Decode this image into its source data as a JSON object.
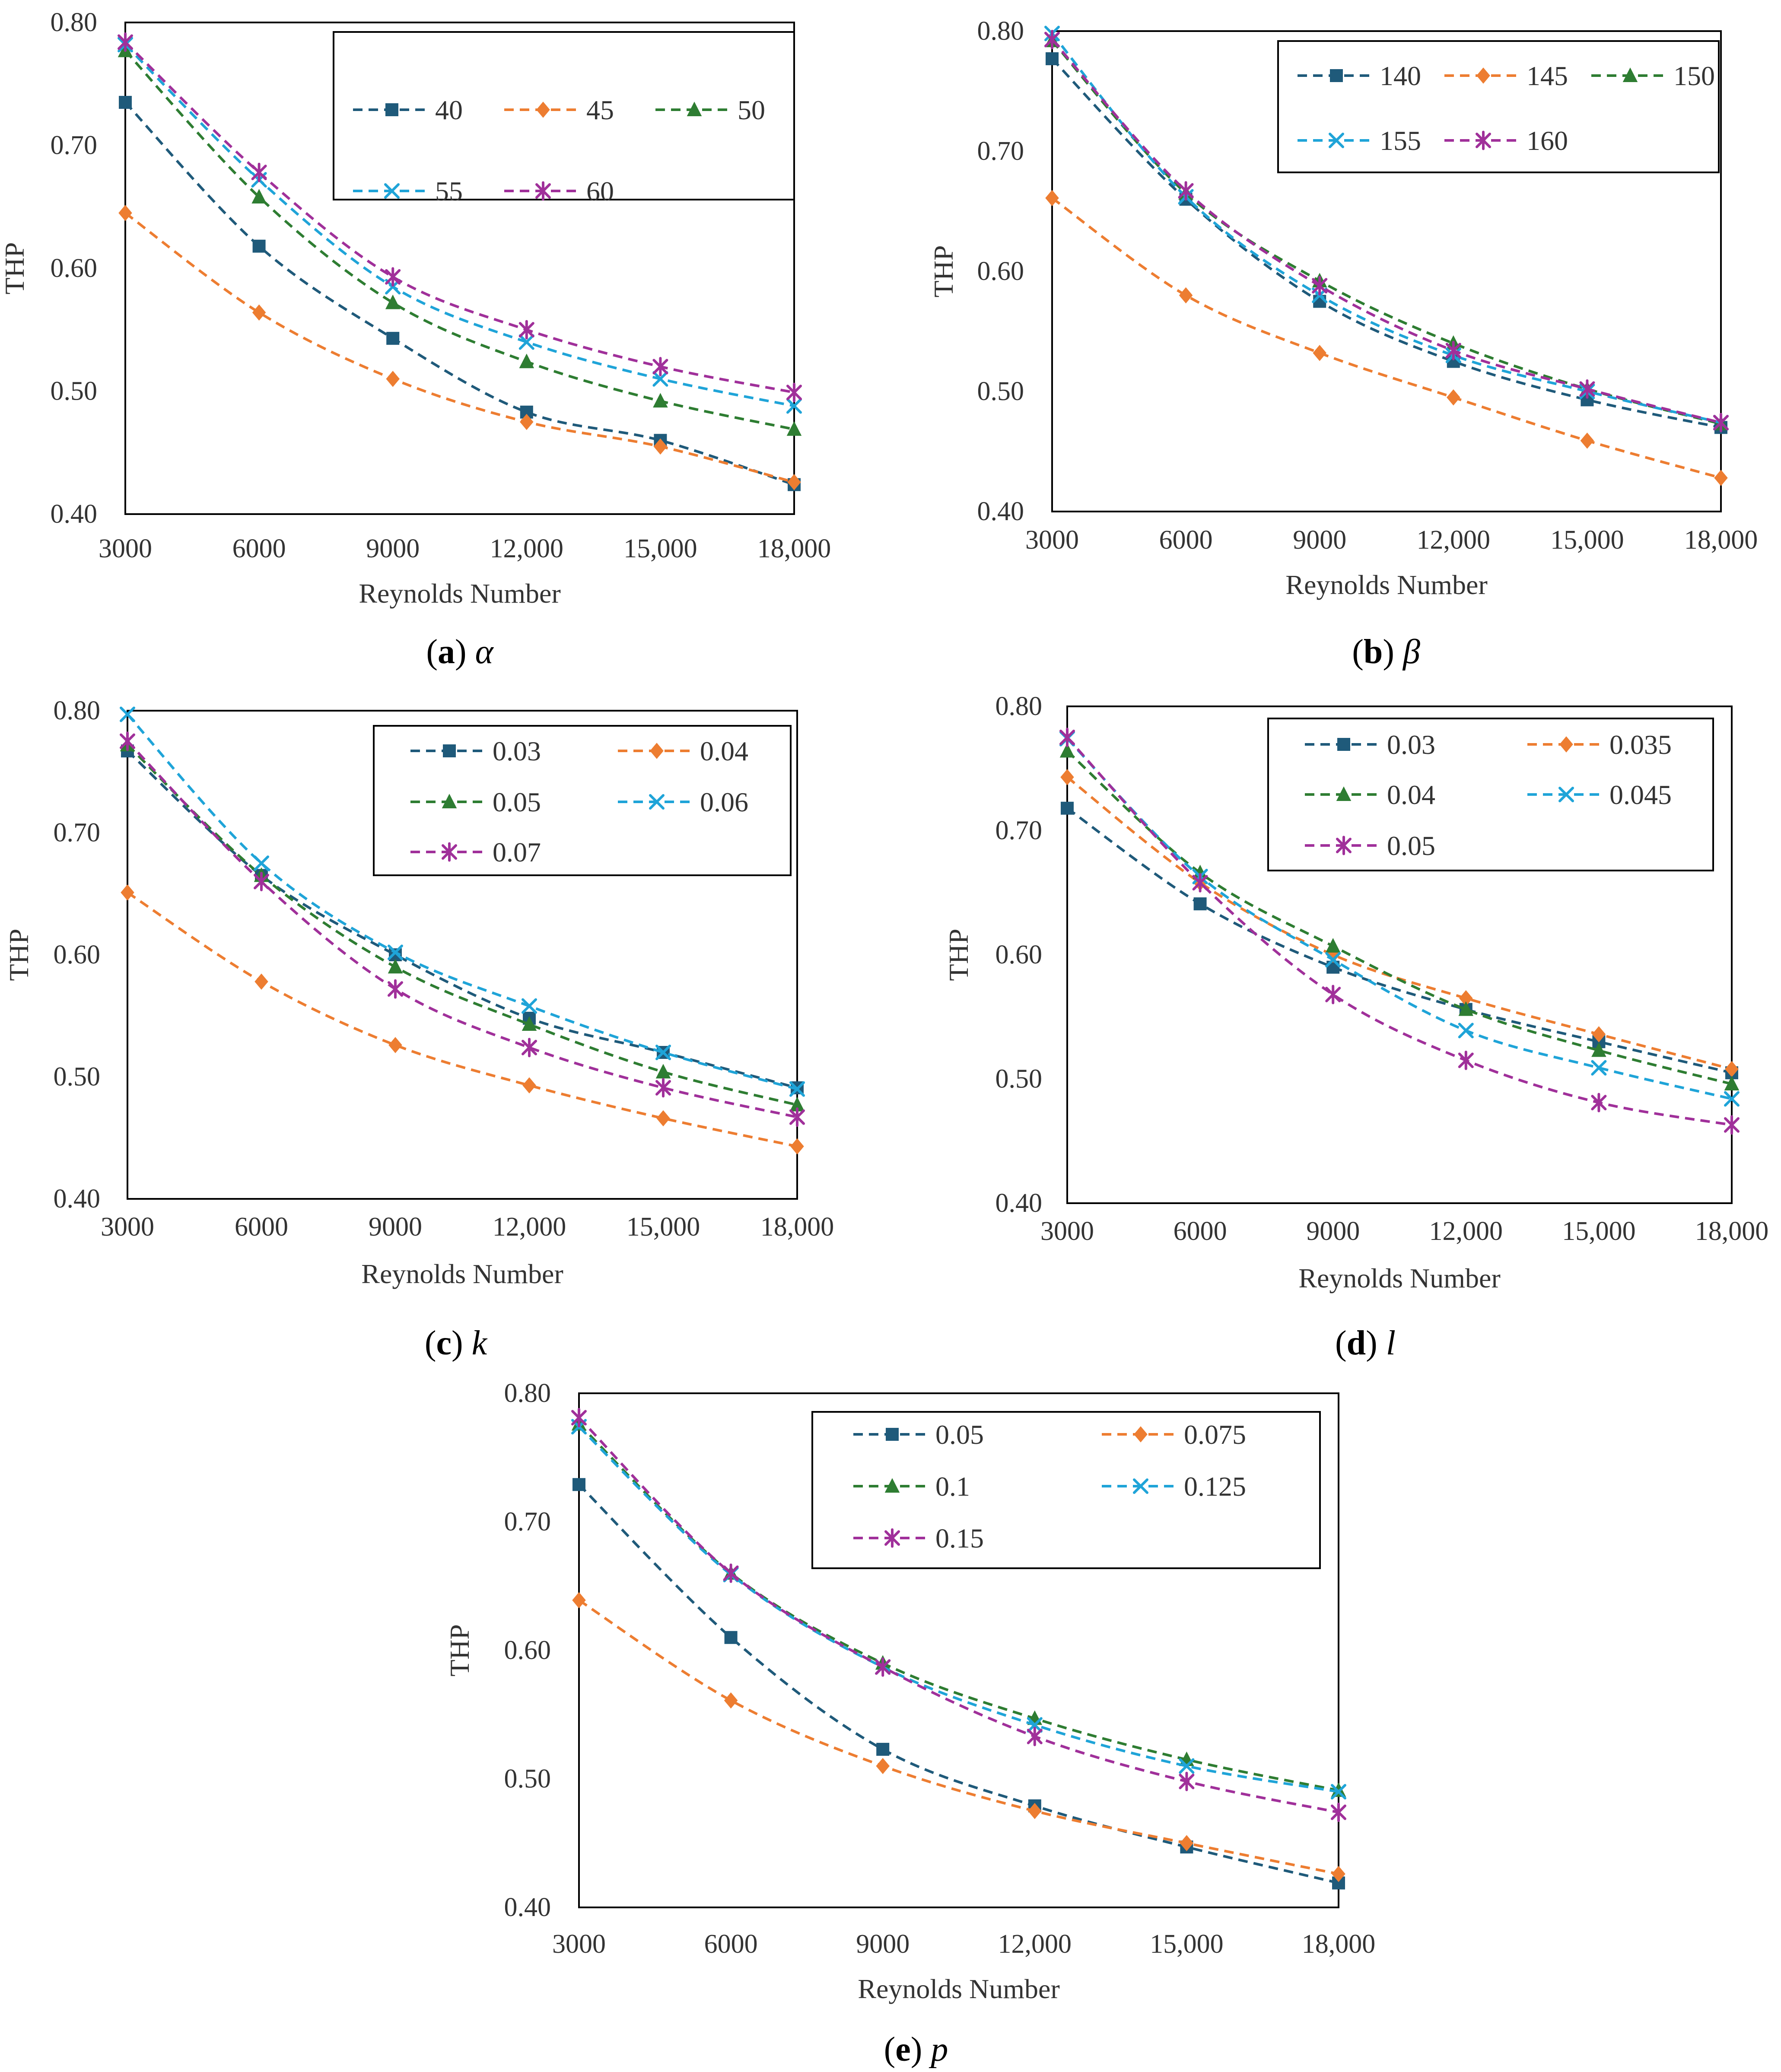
{
  "figure_title": "",
  "chart_data": [
    {
      "type": "line",
      "panel": "a",
      "caption_letter": "a",
      "caption_symbol": "α",
      "xlabel": "Reynolds Number",
      "ylabel": "THP",
      "x": [
        3000,
        6000,
        9000,
        12000,
        15000,
        18000
      ],
      "x_tick_labels": [
        "3000",
        "6000",
        "9000",
        "12,000",
        "15,000",
        "18,000"
      ],
      "ylim": [
        0.4,
        0.8
      ],
      "y_ticks": [
        0.4,
        0.5,
        0.6,
        0.7,
        0.8
      ],
      "y_tick_labels": [
        "0.40",
        "0.50",
        "0.60",
        "0.70",
        "0.80"
      ],
      "legend_position": "top-right",
      "legend_columns": 3,
      "series": [
        {
          "name": "40",
          "values": [
            0.735,
            0.618,
            0.543,
            0.483,
            0.46,
            0.424
          ],
          "color": "#1f5a7a",
          "marker": "square"
        },
        {
          "name": "45",
          "values": [
            0.645,
            0.564,
            0.51,
            0.475,
            0.455,
            0.426
          ],
          "color": "#ed7d31",
          "marker": "diamond"
        },
        {
          "name": "50",
          "values": [
            0.777,
            0.658,
            0.572,
            0.524,
            0.492,
            0.469
          ],
          "color": "#2e7d32",
          "marker": "triangle"
        },
        {
          "name": "55",
          "values": [
            0.782,
            0.672,
            0.585,
            0.54,
            0.51,
            0.488
          ],
          "color": "#1fa4d8",
          "marker": "x"
        },
        {
          "name": "60",
          "values": [
            0.784,
            0.678,
            0.593,
            0.55,
            0.52,
            0.499
          ],
          "color": "#a0309a",
          "marker": "star"
        }
      ]
    },
    {
      "type": "line",
      "panel": "b",
      "caption_letter": "b",
      "caption_symbol": "β",
      "xlabel": "Reynolds Number",
      "ylabel": "THP",
      "x": [
        3000,
        6000,
        9000,
        12000,
        15000,
        18000
      ],
      "x_tick_labels": [
        "3000",
        "6000",
        "9000",
        "12,000",
        "15,000",
        "18,000"
      ],
      "ylim": [
        0.4,
        0.8
      ],
      "y_ticks": [
        0.4,
        0.5,
        0.6,
        0.7,
        0.8
      ],
      "y_tick_labels": [
        "0.40",
        "0.50",
        "0.60",
        "0.70",
        "0.80"
      ],
      "legend_position": "top-right",
      "legend_columns": 3,
      "series": [
        {
          "name": "140",
          "values": [
            0.777,
            0.66,
            0.575,
            0.525,
            0.493,
            0.47
          ],
          "color": "#1f5a7a",
          "marker": "square"
        },
        {
          "name": "145",
          "values": [
            0.661,
            0.58,
            0.532,
            0.495,
            0.459,
            0.428
          ],
          "color": "#ed7d31",
          "marker": "diamond"
        },
        {
          "name": "150",
          "values": [
            0.792,
            0.665,
            0.592,
            0.54,
            0.502,
            0.473
          ],
          "color": "#2e7d32",
          "marker": "triangle"
        },
        {
          "name": "155",
          "values": [
            0.798,
            0.662,
            0.58,
            0.53,
            0.5,
            0.474
          ],
          "color": "#1fa4d8",
          "marker": "x"
        },
        {
          "name": "160",
          "values": [
            0.793,
            0.667,
            0.588,
            0.534,
            0.502,
            0.474
          ],
          "color": "#a0309a",
          "marker": "star"
        }
      ]
    },
    {
      "type": "line",
      "panel": "c",
      "caption_letter": "c",
      "caption_symbol": "k",
      "xlabel": "Reynolds Number",
      "ylabel": "THP",
      "x": [
        3000,
        6000,
        9000,
        12000,
        15000,
        18000
      ],
      "x_tick_labels": [
        "3000",
        "6000",
        "9000",
        "12,000",
        "15,000",
        "18,000"
      ],
      "ylim": [
        0.4,
        0.8
      ],
      "y_ticks": [
        0.4,
        0.5,
        0.6,
        0.7,
        0.8
      ],
      "y_tick_labels": [
        "0.40",
        "0.50",
        "0.60",
        "0.70",
        "0.80"
      ],
      "legend_position": "top-right",
      "legend_columns": 2,
      "series": [
        {
          "name": "0.03",
          "values": [
            0.767,
            0.665,
            0.6,
            0.548,
            0.52,
            0.491
          ],
          "color": "#1f5a7a",
          "marker": "square"
        },
        {
          "name": "0.04",
          "values": [
            0.651,
            0.578,
            0.526,
            0.493,
            0.466,
            0.443
          ],
          "color": "#ed7d31",
          "marker": "diamond"
        },
        {
          "name": "0.05",
          "values": [
            0.772,
            0.665,
            0.59,
            0.543,
            0.504,
            0.477
          ],
          "color": "#2e7d32",
          "marker": "triangle"
        },
        {
          "name": "0.06",
          "values": [
            0.797,
            0.675,
            0.602,
            0.558,
            0.52,
            0.49
          ],
          "color": "#1fa4d8",
          "marker": "x"
        },
        {
          "name": "0.07",
          "values": [
            0.775,
            0.66,
            0.572,
            0.524,
            0.491,
            0.467
          ],
          "color": "#a0309a",
          "marker": "star"
        }
      ]
    },
    {
      "type": "line",
      "panel": "d",
      "caption_letter": "d",
      "caption_symbol": "l",
      "xlabel": "Reynolds Number",
      "ylabel": "THP",
      "x": [
        3000,
        6000,
        9000,
        12000,
        15000,
        18000
      ],
      "x_tick_labels": [
        "3000",
        "6000",
        "9000",
        "12,000",
        "15,000",
        "18,000"
      ],
      "ylim": [
        0.4,
        0.8
      ],
      "y_ticks": [
        0.4,
        0.5,
        0.6,
        0.7,
        0.8
      ],
      "y_tick_labels": [
        "0.40",
        "0.50",
        "0.60",
        "0.70",
        "0.80"
      ],
      "legend_position": "top-right",
      "legend_columns": 2,
      "series": [
        {
          "name": "0.03",
          "values": [
            0.718,
            0.641,
            0.59,
            0.556,
            0.53,
            0.505
          ],
          "color": "#1f5a7a",
          "marker": "square"
        },
        {
          "name": "0.035",
          "values": [
            0.743,
            0.658,
            0.6,
            0.565,
            0.536,
            0.508
          ],
          "color": "#ed7d31",
          "marker": "diamond"
        },
        {
          "name": "0.04",
          "values": [
            0.764,
            0.666,
            0.607,
            0.556,
            0.523,
            0.496
          ],
          "color": "#2e7d32",
          "marker": "triangle"
        },
        {
          "name": "0.045",
          "values": [
            0.774,
            0.663,
            0.596,
            0.539,
            0.509,
            0.484
          ],
          "color": "#1fa4d8",
          "marker": "x"
        },
        {
          "name": "0.05",
          "values": [
            0.775,
            0.658,
            0.568,
            0.515,
            0.481,
            0.463
          ],
          "color": "#a0309a",
          "marker": "star"
        }
      ]
    },
    {
      "type": "line",
      "panel": "e",
      "caption_letter": "e",
      "caption_symbol": "p",
      "xlabel": "Reynolds Number",
      "ylabel": "THP",
      "x": [
        3000,
        6000,
        9000,
        12000,
        15000,
        18000
      ],
      "x_tick_labels": [
        "3000",
        "6000",
        "9000",
        "12,000",
        "15,000",
        "18,000"
      ],
      "ylim": [
        0.4,
        0.8
      ],
      "y_ticks": [
        0.4,
        0.5,
        0.6,
        0.7,
        0.8
      ],
      "y_tick_labels": [
        "0.40",
        "0.50",
        "0.60",
        "0.70",
        "0.80"
      ],
      "legend_position": "top-right",
      "legend_columns": 2,
      "series": [
        {
          "name": "0.05",
          "values": [
            0.729,
            0.61,
            0.523,
            0.479,
            0.447,
            0.419
          ],
          "color": "#1f5a7a",
          "marker": "square"
        },
        {
          "name": "0.075",
          "values": [
            0.639,
            0.561,
            0.51,
            0.475,
            0.45,
            0.426
          ],
          "color": "#ed7d31",
          "marker": "diamond"
        },
        {
          "name": "0.1",
          "values": [
            0.776,
            0.66,
            0.59,
            0.547,
            0.515,
            0.491
          ],
          "color": "#2e7d32",
          "marker": "triangle"
        },
        {
          "name": "0.125",
          "values": [
            0.774,
            0.659,
            0.587,
            0.542,
            0.51,
            0.49
          ],
          "color": "#1fa4d8",
          "marker": "x"
        },
        {
          "name": "0.15",
          "values": [
            0.781,
            0.66,
            0.587,
            0.533,
            0.498,
            0.474
          ],
          "color": "#a0309a",
          "marker": "star"
        }
      ]
    }
  ]
}
